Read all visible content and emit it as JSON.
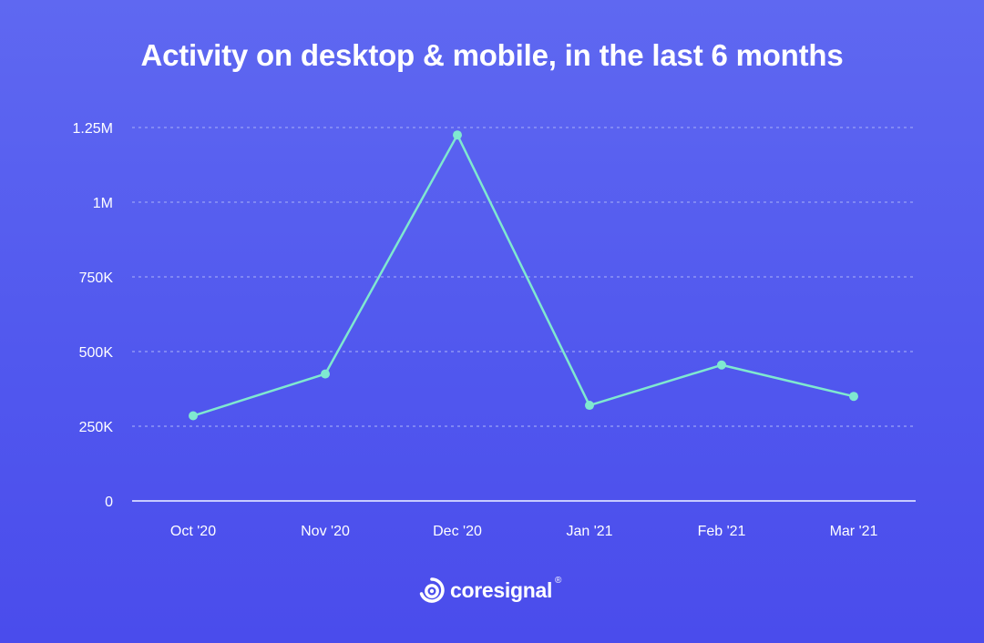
{
  "chart_data": {
    "type": "line",
    "title": "Activity on desktop & mobile, in the last 6 months",
    "categories": [
      "Oct '20",
      "Nov '20",
      "Dec '20",
      "Jan '21",
      "Feb '21",
      "Mar '21"
    ],
    "values": [
      285000,
      425000,
      1225000,
      320000,
      455000,
      350000
    ],
    "xlabel": "",
    "ylabel": "",
    "ylim": [
      0,
      1250000
    ],
    "yticks": [
      0,
      250000,
      500000,
      750000,
      1000000,
      1250000
    ],
    "ytick_labels": [
      "0",
      "250K",
      "500K",
      "750K",
      "1M",
      "1.25M"
    ],
    "grid": true,
    "legend": "none",
    "colors": {
      "line": "#7fe8d0",
      "marker": "#7fe8d0",
      "grid": "#8e96f6",
      "axis": "#c7cbff",
      "text": "#ffffff"
    }
  },
  "brand": {
    "name": "coresignal",
    "registered": "®",
    "icon": "coresignal-logo-icon"
  }
}
